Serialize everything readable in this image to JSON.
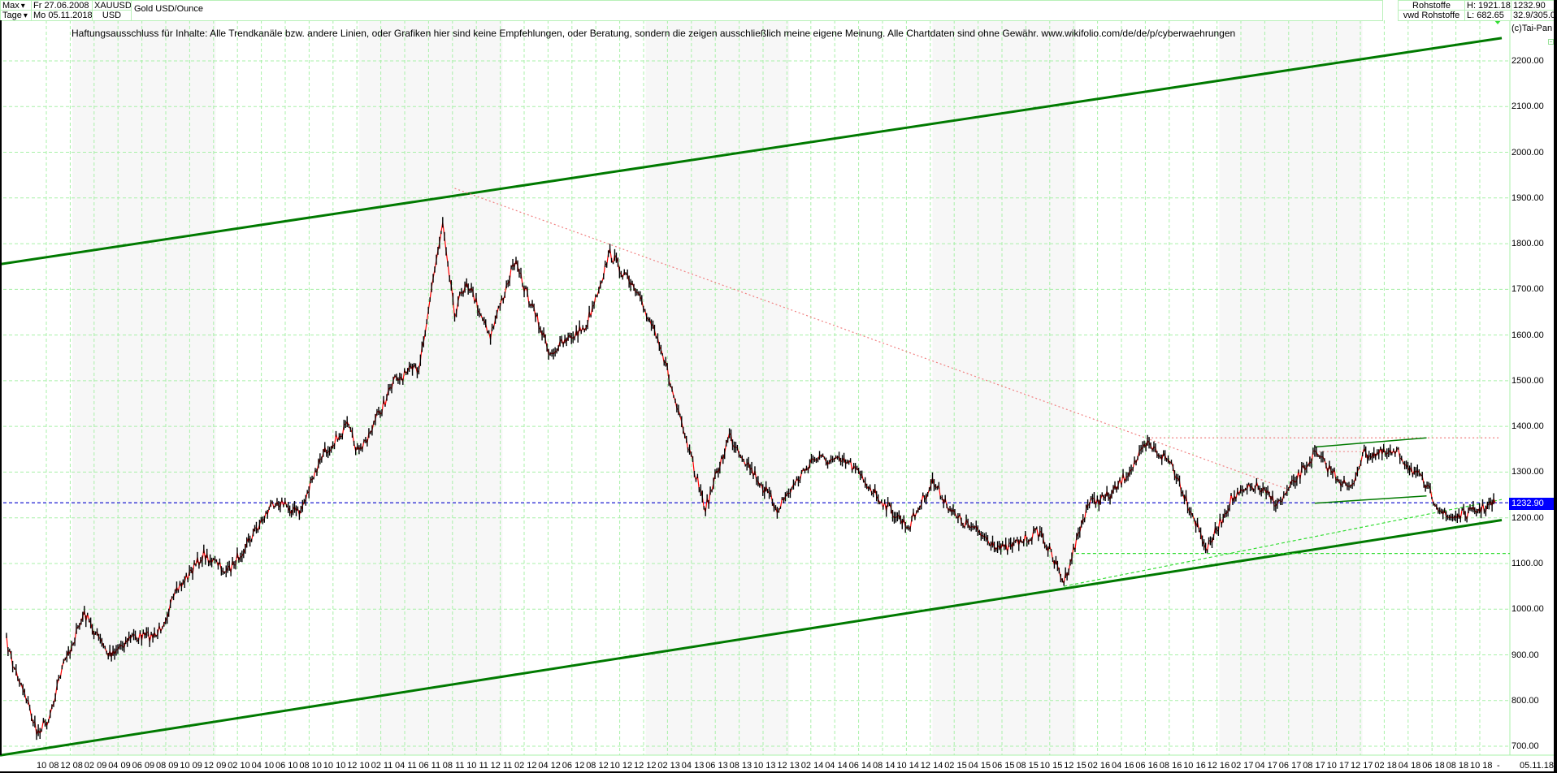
{
  "header": {
    "range_select": "Max",
    "interval_select": "Tage",
    "start_date": "Fr 27.06.2008",
    "end_date": "Mo 05.11.2018",
    "symbol": "XAUUSD",
    "currency": "USD",
    "instrument_name": "Gold USD/Ounce",
    "category": "Rohstoffe",
    "source": "vwd Rohstoffe",
    "high": "H: 1921.18",
    "low": "L: 682.65",
    "last_price": "1232.90",
    "ratio": "32.9/305.0",
    "copyright": "(c)Tai-Pan"
  },
  "disclaimer": "Haftungsausschluss für Inhalte: Alle Trendkanäle bzw. andere Linien, oder Grafiken hier sind keine Empfehlungen, oder Beratung, sondern die zeigen ausschließlich meine eigene Meinung. Alle Chartdaten sind ohne Gewähr.  www.wikifolio.com/de/de/p/cyberwaehrungen",
  "price_tag": "1232.90",
  "colors": {
    "grid": "#a8f0a8",
    "channel": "#007a00",
    "support_dashed": "#33dd33",
    "resistance_dashed": "#f08080",
    "last_price_line": "#0000cc",
    "price_tag_bg": "#0000ff",
    "candle_up": "#000000",
    "candle_down": "#ff0000",
    "band": "#f7f7f7"
  },
  "chart_data": {
    "type": "line",
    "title": "Gold USD/Ounce (XAUUSD)",
    "subtitle": "Tage, Fr 27.06.2008 - Mo 05.11.2018",
    "xlabel": "",
    "ylabel": "USD",
    "ylim": [
      680,
      2260
    ],
    "grid": true,
    "y_ticks": [
      "2200.00",
      "2100.00",
      "2000.00",
      "1900.00",
      "1800.00",
      "1700.00",
      "1600.00",
      "1500.00",
      "1400.00",
      "1300.00",
      "1200.00",
      "1100.00",
      "1000.00",
      "900.00",
      "800.00",
      "700.00"
    ],
    "x_ticks": [
      "10 08",
      "12 08",
      "02 09",
      "04 09",
      "06 09",
      "08 09",
      "10 09",
      "12 09",
      "02 10",
      "04 10",
      "06 10",
      "08 10",
      "10 10",
      "12 10",
      "02 11",
      "04 11",
      "06 11",
      "08 11",
      "10 11",
      "12 11",
      "02 12",
      "04 12",
      "06 12",
      "08 12",
      "10 12",
      "12 12",
      "02 13",
      "04 13",
      "06 13",
      "08 13",
      "10 13",
      "12 13",
      "02 14",
      "04 14",
      "06 14",
      "08 14",
      "10 14",
      "12 14",
      "02 15",
      "04 15",
      "06 15",
      "08 15",
      "10 15",
      "12 15",
      "02 16",
      "04 16",
      "06 16",
      "08 16",
      "10 16",
      "12 16",
      "02 17",
      "04 17",
      "06 17",
      "08 17",
      "10 17",
      "12 17",
      "02 18",
      "04 18",
      "06 18",
      "08 18",
      "10 18",
      "-",
      "05.11.18"
    ],
    "series": [
      {
        "name": "XAUUSD close (approx.)",
        "x": [
          "2008-06",
          "2008-08",
          "2008-09",
          "2008-10",
          "2008-11",
          "2008-12",
          "2009-02",
          "2009-04",
          "2009-06",
          "2009-08",
          "2009-10",
          "2009-12",
          "2010-02",
          "2010-04",
          "2010-06",
          "2010-08",
          "2010-10",
          "2010-12",
          "2011-01",
          "2011-04",
          "2011-06",
          "2011-08",
          "2011-09",
          "2011-10",
          "2011-12",
          "2012-02",
          "2012-05",
          "2012-08",
          "2012-10",
          "2012-12",
          "2013-02",
          "2013-04",
          "2013-06",
          "2013-08",
          "2013-10",
          "2013-12",
          "2014-03",
          "2014-06",
          "2014-09",
          "2014-11",
          "2015-01",
          "2015-03",
          "2015-07",
          "2015-10",
          "2015-12",
          "2016-02",
          "2016-04",
          "2016-07",
          "2016-09",
          "2016-12",
          "2017-02",
          "2017-04",
          "2017-06",
          "2017-09",
          "2017-12",
          "2018-01",
          "2018-04",
          "2018-06",
          "2018-08",
          "2018-10",
          "2018-11"
        ],
        "values": [
          930,
          880,
          820,
          730,
          760,
          860,
          990,
          900,
          940,
          940,
          1050,
          1120,
          1080,
          1160,
          1240,
          1210,
          1340,
          1400,
          1340,
          1500,
          1530,
          1850,
          1650,
          1720,
          1600,
          1760,
          1560,
          1620,
          1780,
          1700,
          1600,
          1400,
          1220,
          1380,
          1300,
          1220,
          1330,
          1320,
          1230,
          1180,
          1280,
          1200,
          1130,
          1170,
          1060,
          1230,
          1250,
          1360,
          1320,
          1130,
          1240,
          1270,
          1230,
          1340,
          1260,
          1340,
          1340,
          1280,
          1200,
          1210,
          1232.9
        ]
      }
    ],
    "lines": [
      {
        "name": "upper channel",
        "style": "solid",
        "color": "#007a00",
        "from": [
          "2008-06",
          1755
        ],
        "to": [
          "2018-11",
          2250
        ]
      },
      {
        "name": "lower channel",
        "style": "solid",
        "color": "#007a00",
        "from": [
          "2008-06",
          680
        ],
        "to": [
          "2018-11",
          1195
        ]
      },
      {
        "name": "downtrend resistance",
        "style": "dotted",
        "color": "#f08080",
        "from": [
          "2011-09",
          1921
        ],
        "to": [
          "2017-07",
          1260
        ]
      },
      {
        "name": "horizontal resistance",
        "style": "dotted",
        "color": "#f08080",
        "level": 1375
      },
      {
        "name": "support uptrend",
        "style": "dashed",
        "color": "#33dd33",
        "from": [
          "2015-12",
          1050
        ],
        "to": [
          "2018-11",
          1240
        ]
      },
      {
        "name": "horizontal support",
        "style": "dashed",
        "color": "#33dd33",
        "level": 1122
      },
      {
        "name": "last price",
        "style": "dashed",
        "color": "#0000cc",
        "level": 1232.9
      }
    ],
    "annotations": [
      "H: 1921.18",
      "L: 682.65",
      "Last 1232.90"
    ]
  }
}
